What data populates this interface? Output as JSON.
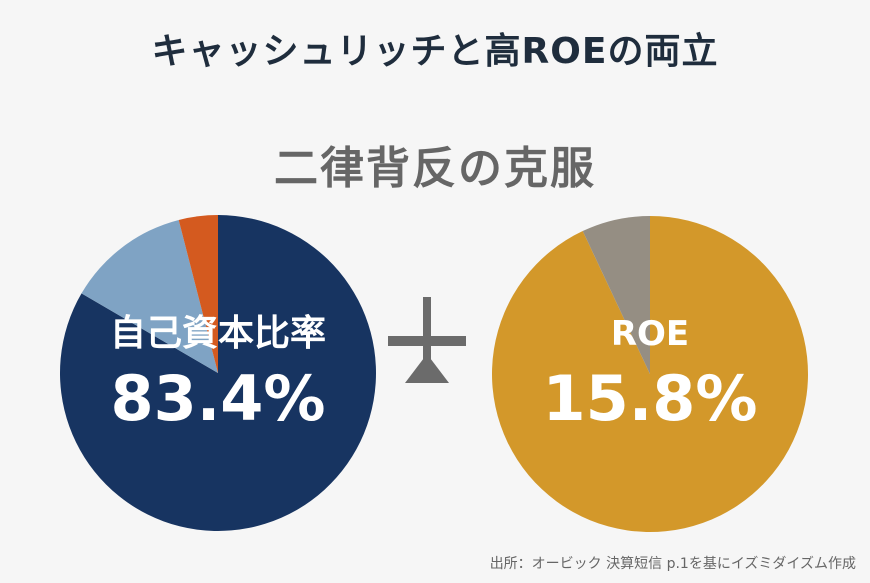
{
  "title": "キャッシュリッチと高ROEの両立",
  "subtitle": "二律背反の克服",
  "source": "出所：オービック 決算短信 p.1を基にイズミダイズム作成",
  "colors": {
    "equity_main": "#173461",
    "equity_light": "#7fa3c4",
    "equity_accent": "#d45a1f",
    "roe_main": "#d3982a",
    "roe_accent": "#958e83",
    "balance": "#6b6b6b"
  },
  "balance_icon": "balance-scale-icon",
  "chart_data": [
    {
      "type": "pie",
      "label": "自己資本比率",
      "value_text": "83.4%",
      "value": 83.4,
      "slices": [
        {
          "value": 83.4,
          "color": "#173461"
        },
        {
          "value": 12.6,
          "color": "#7fa3c4"
        },
        {
          "value": 4.0,
          "color": "#d45a1f"
        }
      ]
    },
    {
      "type": "pie",
      "label": "ROE",
      "value_text": "15.8%",
      "value": 15.8,
      "slices": [
        {
          "value": 93.0,
          "color": "#d3982a"
        },
        {
          "value": 7.0,
          "color": "#958e83"
        }
      ]
    }
  ]
}
